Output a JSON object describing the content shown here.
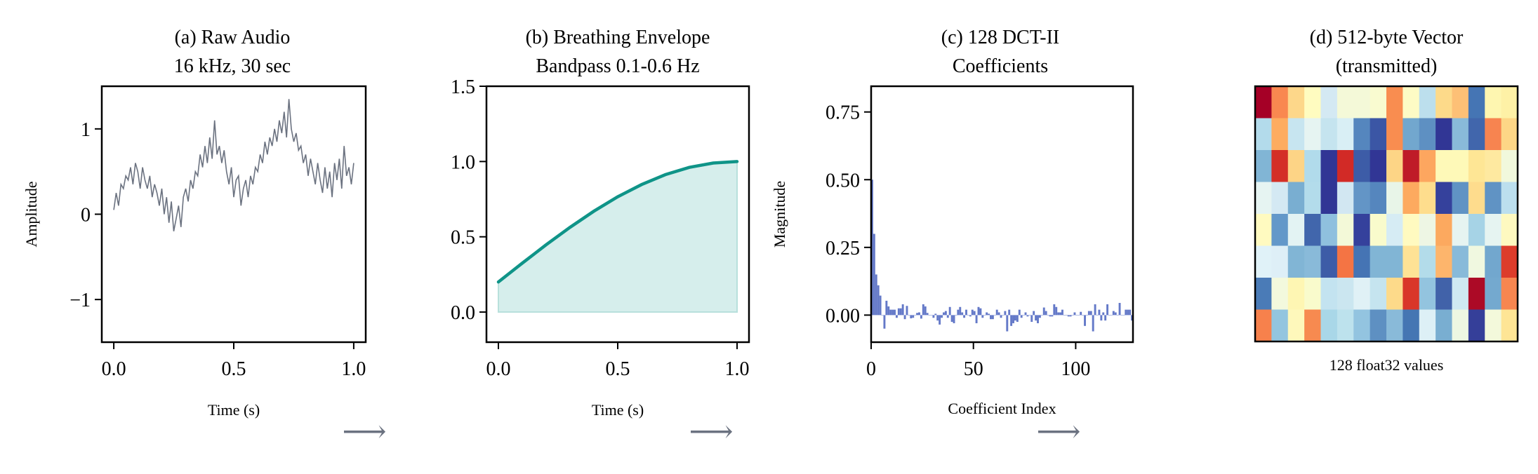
{
  "colors": {
    "audio": "#6b7280",
    "envelope": "#0f9488",
    "envelope_fill": "#d6eeec",
    "dct": "#6479c8",
    "arrow": "#6b7280"
  },
  "arrow_glyph": "⟶",
  "chart_data": [
    {
      "type": "line",
      "title": [
        "(a) Raw Audio",
        "16 kHz, 30 sec"
      ],
      "xlabel": "Time (s)",
      "ylabel": "Amplitude",
      "xlim": [
        -0.05,
        1.05
      ],
      "ylim": [
        -1.5,
        1.5
      ],
      "xticks": [
        {
          "v": 0,
          "label": "0.0"
        },
        {
          "v": 0.5,
          "label": "0.5"
        },
        {
          "v": 1,
          "label": "1.0"
        }
      ],
      "yticks": [
        {
          "v": 1,
          "label": "1"
        },
        {
          "v": 0,
          "label": "0"
        },
        {
          "v": -1,
          "label": "−1"
        }
      ],
      "x_start": 0,
      "x_end": 1,
      "values": [
        0.05,
        0.25,
        0.1,
        0.35,
        0.3,
        0.45,
        0.4,
        0.55,
        0.35,
        0.6,
        0.5,
        0.3,
        0.55,
        0.4,
        0.3,
        0.45,
        0.2,
        0.35,
        0.25,
        0.1,
        0.3,
        0.0,
        0.2,
        -0.1,
        0.15,
        -0.2,
        -0.05,
        0.1,
        -0.15,
        0.2,
        0.3,
        0.15,
        0.4,
        0.3,
        0.5,
        0.45,
        0.7,
        0.55,
        0.8,
        0.6,
        0.9,
        0.65,
        1.1,
        0.7,
        0.8,
        0.6,
        0.75,
        0.5,
        0.35,
        0.55,
        0.2,
        0.4,
        0.45,
        0.1,
        0.3,
        0.4,
        0.2,
        0.45,
        0.35,
        0.55,
        0.5,
        0.7,
        0.6,
        0.85,
        0.7,
        0.9,
        0.8,
        1.0,
        0.85,
        1.1,
        0.95,
        1.2,
        0.9,
        1.35,
        1.0,
        0.85,
        0.95,
        0.75,
        0.8,
        0.6,
        0.7,
        0.45,
        0.65,
        0.5,
        0.35,
        0.6,
        0.4,
        0.25,
        0.55,
        0.3,
        0.5,
        0.2,
        0.6,
        0.4,
        0.65,
        0.3,
        0.8,
        0.45,
        0.55,
        0.35,
        0.6
      ]
    },
    {
      "type": "area",
      "title": [
        "(b) Breathing Envelope",
        "Bandpass 0.1-0.6 Hz"
      ],
      "xlabel": "Time (s)",
      "xlim": [
        -0.05,
        1.05
      ],
      "ylim": [
        -0.2,
        1.5
      ],
      "xticks": [
        {
          "v": 0,
          "label": "0.0"
        },
        {
          "v": 0.5,
          "label": "0.5"
        },
        {
          "v": 1,
          "label": "1.0"
        }
      ],
      "yticks": [
        {
          "v": 1.5,
          "label": "1.5"
        },
        {
          "v": 1,
          "label": "1.0"
        },
        {
          "v": 0.5,
          "label": "0.5"
        },
        {
          "v": 0,
          "label": "0.0"
        }
      ],
      "x": [
        0,
        0.1,
        0.2,
        0.3,
        0.4,
        0.5,
        0.6,
        0.7,
        0.8,
        0.9,
        1.0
      ],
      "values": [
        0.2,
        0.325,
        0.447,
        0.563,
        0.67,
        0.766,
        0.847,
        0.913,
        0.961,
        0.99,
        1.0
      ]
    },
    {
      "type": "bar",
      "title": [
        "(c) 128 DCT-II",
        "Coefficients"
      ],
      "xlabel": "Coefficient Index",
      "ylabel": "Magnitude",
      "xlim": [
        0,
        128
      ],
      "ylim": [
        -0.1,
        0.845
      ],
      "xticks": [
        {
          "v": 0,
          "label": "0"
        },
        {
          "v": 50,
          "label": "50"
        },
        {
          "v": 100,
          "label": "100"
        }
      ],
      "yticks": [
        {
          "v": 0.75,
          "label": "0.75"
        },
        {
          "v": 0.5,
          "label": "0.50"
        },
        {
          "v": 0.25,
          "label": "0.25"
        },
        {
          "v": 0,
          "label": "0.00"
        }
      ],
      "values": [
        0.5,
        0.3,
        0.15,
        0.11,
        0.072,
        0.0,
        -0.05,
        0.053,
        0.032,
        0.02,
        0.02,
        0.02,
        -0.01,
        0.025,
        0.025,
        0.04,
        -0.015,
        0.034,
        0.0,
        -0.012,
        -0.01,
        0.0,
        0.008,
        0.01,
        -0.013,
        0.04,
        0.032,
        0.008,
        0.0,
        0.0,
        -0.01,
        0.005,
        -0.02,
        -0.035,
        -0.01,
        0.01,
        0.015,
        -0.01,
        0.03,
        -0.025,
        -0.03,
        0.0,
        0.02,
        0.03,
        0.01,
        -0.01,
        0.02,
        0.0,
        -0.005,
        0.02,
        0.015,
        -0.03,
        0.03,
        0.025,
        -0.01,
        0.0,
        0.01,
        0.005,
        -0.015,
        -0.015,
        0.0,
        0.02,
        0.01,
        -0.01,
        0.0,
        0.015,
        -0.06,
        0.02,
        -0.04,
        -0.03,
        -0.02,
        -0.025,
        0.02,
        -0.01,
        0.0,
        0.01,
        -0.005,
        0.0,
        -0.025,
        0.015,
        -0.02,
        -0.03,
        -0.01,
        0.0,
        0.028,
        0.015,
        0.0,
        -0.005,
        -0.005,
        0.04,
        0.03,
        0.01,
        0.01,
        0.02,
        0.0,
        0.0,
        -0.005,
        -0.005,
        0.0,
        0.01,
        0.0,
        0.0,
        0.012,
        0.0,
        -0.04,
        0.0,
        0.015,
        0.015,
        -0.06,
        0.04,
        0.0,
        0.02,
        -0.02,
        0.01,
        -0.02,
        0.04,
        0.0,
        0.0,
        0.015,
        0.01,
        0.0,
        0.045,
        0.0,
        0.0,
        0.02,
        0.02,
        0.02,
        -0.02
      ]
    },
    {
      "type": "heatmap",
      "title": [
        "(d) 512-byte Vector",
        "(transmitted)"
      ],
      "caption": "128 float32 values",
      "colormap": "RdYlBu",
      "rows": 8,
      "cols": 16,
      "cells": [
        [
          "#a50026",
          "#f98850",
          "#fdd78a",
          "#fffcc0",
          "#d4e9f3",
          "#f4f9d8",
          "#f4f9d8",
          "#f9fbd0",
          "#f98d50",
          "#fdfbc5",
          "#bcdfed",
          "#fdda8a",
          "#fdc076",
          "#4575b4",
          "#fef6b0",
          "#fef1a6"
        ],
        [
          "#b3dbeb",
          "#fdac60",
          "#c7e5f0",
          "#e6f4f2",
          "#c5e4ef",
          "#d9eff5",
          "#5586be",
          "#3b56a5",
          "#f98d50",
          "#72a7ce",
          "#5e90c2",
          "#313695",
          "#89bad9",
          "#4166ac",
          "#f78450",
          "#fdd686"
        ],
        [
          "#81b5d5",
          "#d42f27",
          "#fdd486",
          "#b1dbeb",
          "#313695",
          "#d22a26",
          "#3d5ca7",
          "#313695",
          "#fdd586",
          "#bf1b28",
          "#fda65f",
          "#fef9b8",
          "#fef9b8",
          "#fee695",
          "#fee9a0",
          "#f1f8dc"
        ],
        [
          "#e6f4f2",
          "#d4e9f3",
          "#79aed1",
          "#b3dceb",
          "#313695",
          "#d2e7f2",
          "#6395c6",
          "#5586be",
          "#e8f5e8",
          "#fdaa5f",
          "#fedd8d",
          "#35419c",
          "#6093c4",
          "#fedc8d",
          "#6093c4",
          "#bcdfee"
        ],
        [
          "#fffac0",
          "#6398c9",
          "#e3f3f3",
          "#4166ac",
          "#8fc0de",
          "#f3f9d8",
          "#35419c",
          "#f9fbcc",
          "#d6ecf4",
          "#fffac0",
          "#eef6e4",
          "#fca95f",
          "#e6f4f1",
          "#a6d3e6",
          "#e6f4f1",
          "#fef9c0"
        ],
        [
          "#e0f2f8",
          "#deeff7",
          "#81b5d5",
          "#89bad9",
          "#3d5ca7",
          "#f47444",
          "#4574b4",
          "#81b5d5",
          "#81b5d5",
          "#fee295",
          "#b3dcea",
          "#fdb56c",
          "#88bad9",
          "#f0f8e0",
          "#72a7ce",
          "#dc3c2b"
        ],
        [
          "#4a7bb7",
          "#f3f9dd",
          "#fef6b3",
          "#f9fbcc",
          "#c3e3f0",
          "#cbe6f0",
          "#e0f1f6",
          "#c5e4ef",
          "#fdda8a",
          "#d93629",
          "#93c4df",
          "#4162a9",
          "#cfe9f2",
          "#ac0a26",
          "#74a9cf",
          "#f78650"
        ],
        [
          "#f7814c",
          "#93c5df",
          "#fef8bb",
          "#f78a50",
          "#a9d7e8",
          "#bde2ed",
          "#93c4e0",
          "#5e90c2",
          "#89bad9",
          "#4576b3",
          "#ddf0f6",
          "#79aed1",
          "#edf7e2",
          "#353f99",
          "#f3f9db",
          "#fee595"
        ]
      ]
    }
  ]
}
